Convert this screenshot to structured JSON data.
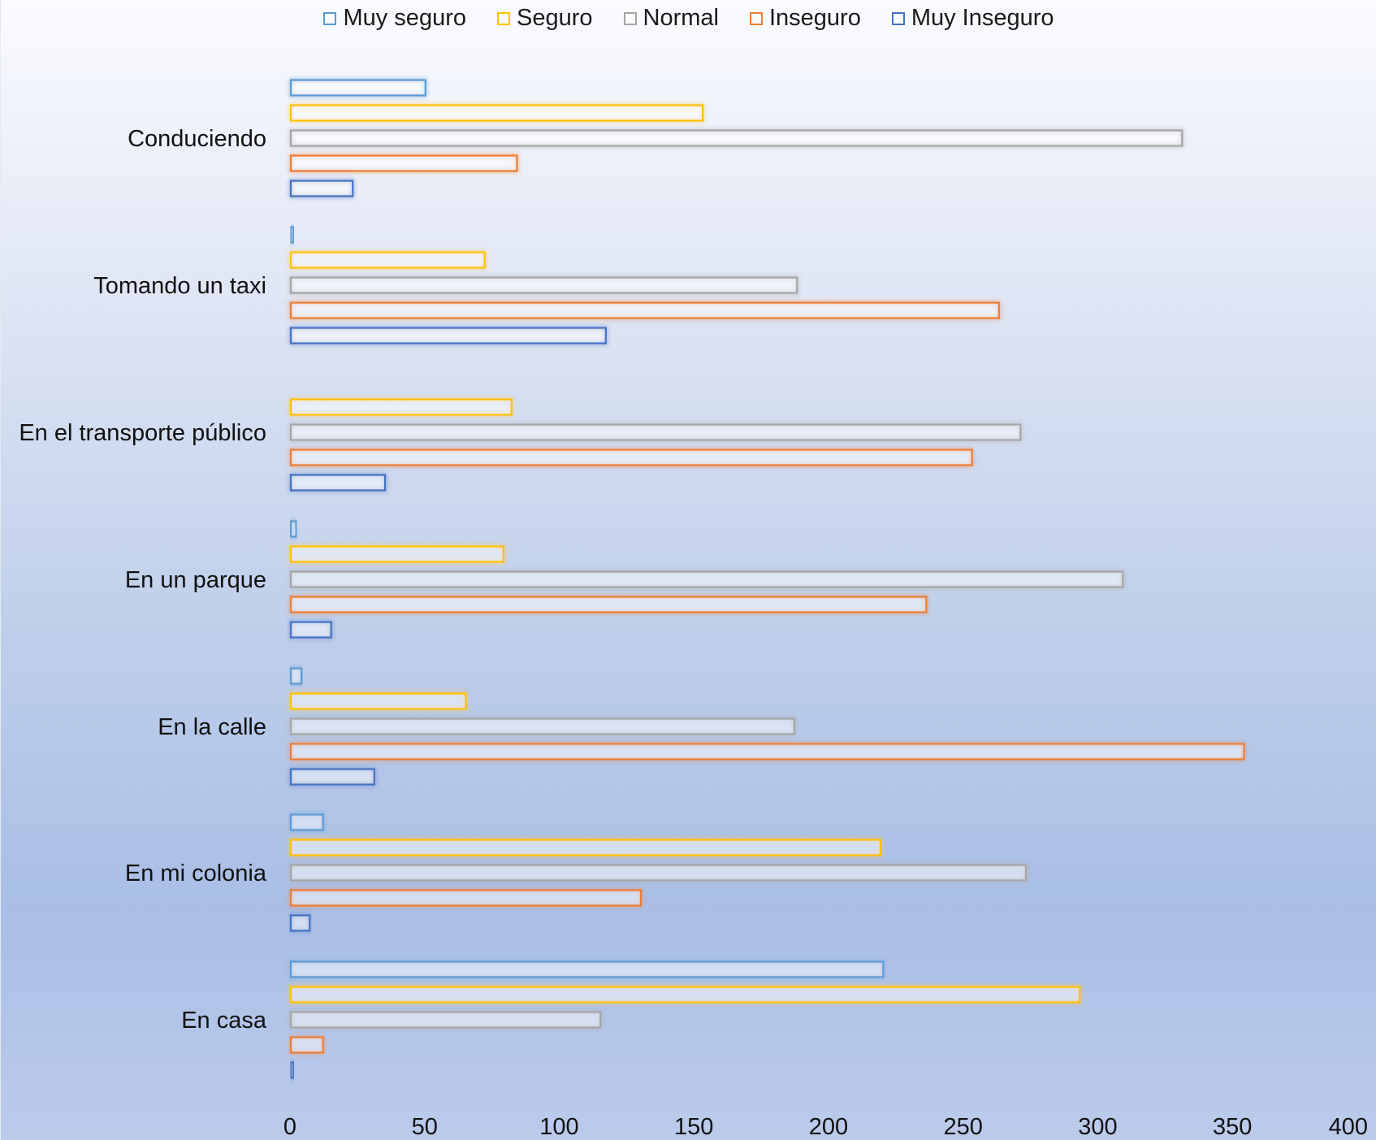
{
  "chart_data": {
    "type": "bar",
    "orientation": "horizontal",
    "categories": [
      "Conduciendo",
      "Tomando un taxi",
      "En el transporte público",
      "En un parque",
      "En la calle",
      "En mi colonia",
      "En casa"
    ],
    "series": [
      {
        "name": "Muy seguro",
        "color": "#5b9bd5",
        "values": [
          50,
          1,
          0,
          2,
          4,
          12,
          220
        ]
      },
      {
        "name": "Seguro",
        "color": "#ffc000",
        "values": [
          153,
          72,
          82,
          79,
          65,
          219,
          293
        ]
      },
      {
        "name": "Normal",
        "color": "#a5a5a5",
        "values": [
          331,
          188,
          271,
          309,
          187,
          273,
          115
        ]
      },
      {
        "name": "Inseguro",
        "color": "#ed7d31",
        "values": [
          84,
          263,
          253,
          236,
          354,
          130,
          12
        ]
      },
      {
        "name": "Muy Inseguro",
        "color": "#4472c4",
        "values": [
          23,
          117,
          35,
          15,
          31,
          7,
          1
        ]
      }
    ],
    "xlim": [
      0,
      400
    ],
    "xticks": [
      "0",
      "50",
      "100",
      "150",
      "200",
      "250",
      "300",
      "350",
      "400"
    ],
    "legend_position": "top",
    "grid": false,
    "title": "",
    "xlabel": "",
    "ylabel": ""
  }
}
